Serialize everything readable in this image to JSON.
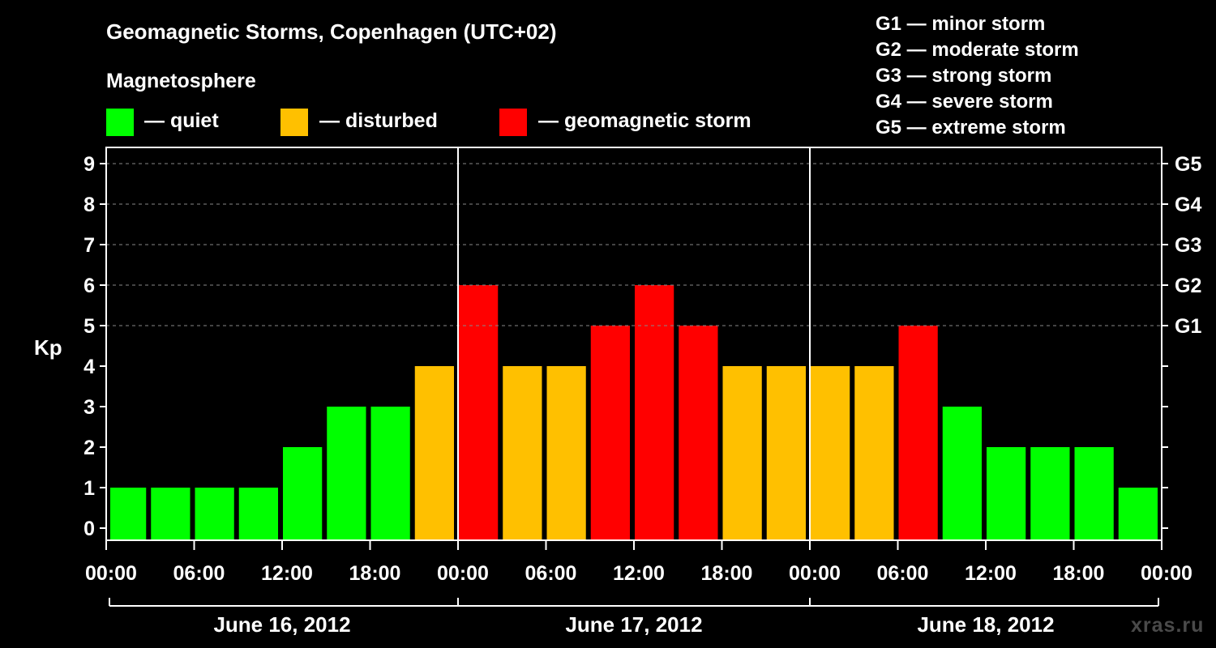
{
  "header": {
    "title": "Geomagnetic Storms, Copenhagen (UTC+02)",
    "subtitle": "Magnetosphere"
  },
  "legend": [
    {
      "label": "— quiet",
      "color": "#00ff00"
    },
    {
      "label": "— disturbed",
      "color": "#ffc000"
    },
    {
      "label": "— geomagnetic storm",
      "color": "#ff0000"
    }
  ],
  "storm_scale": [
    "G1 — minor storm",
    "G2 — moderate storm",
    "G3 — strong storm",
    "G4 — severe storm",
    "G5 — extreme storm"
  ],
  "watermark": "xras.ru",
  "colors": {
    "quiet": "#00ff00",
    "disturbed": "#ffc000",
    "storm": "#ff0000",
    "background": "#000000",
    "grid": "#888888"
  },
  "chart_data": {
    "type": "bar",
    "ylabel": "Kp",
    "ylim": [
      0,
      9
    ],
    "yticks": [
      "0",
      "1",
      "2",
      "3",
      "4",
      "5",
      "6",
      "7",
      "8",
      "9"
    ],
    "right_axis_labels": [
      {
        "kp": 5,
        "label": "G1"
      },
      {
        "kp": 6,
        "label": "G2"
      },
      {
        "kp": 7,
        "label": "G3"
      },
      {
        "kp": 8,
        "label": "G4"
      },
      {
        "kp": 9,
        "label": "G5"
      }
    ],
    "grid": true,
    "xticks": [
      "00:00",
      "06:00",
      "12:00",
      "18:00",
      "00:00",
      "06:00",
      "12:00",
      "18:00",
      "00:00",
      "06:00",
      "12:00",
      "18:00",
      "00:00"
    ],
    "day_labels": [
      "June 16, 2012",
      "June 17, 2012",
      "June 18, 2012"
    ],
    "bars": [
      {
        "start": "2012-06-16 00:00",
        "kp": 1,
        "level": "quiet"
      },
      {
        "start": "2012-06-16 03:00",
        "kp": 1,
        "level": "quiet"
      },
      {
        "start": "2012-06-16 06:00",
        "kp": 1,
        "level": "quiet"
      },
      {
        "start": "2012-06-16 09:00",
        "kp": 1,
        "level": "quiet"
      },
      {
        "start": "2012-06-16 12:00",
        "kp": 2,
        "level": "quiet"
      },
      {
        "start": "2012-06-16 15:00",
        "kp": 3,
        "level": "quiet"
      },
      {
        "start": "2012-06-16 18:00",
        "kp": 3,
        "level": "quiet"
      },
      {
        "start": "2012-06-16 21:00",
        "kp": 4,
        "level": "disturbed"
      },
      {
        "start": "2012-06-17 00:00",
        "kp": 6,
        "level": "storm"
      },
      {
        "start": "2012-06-17 03:00",
        "kp": 4,
        "level": "disturbed"
      },
      {
        "start": "2012-06-17 06:00",
        "kp": 4,
        "level": "disturbed"
      },
      {
        "start": "2012-06-17 09:00",
        "kp": 5,
        "level": "storm"
      },
      {
        "start": "2012-06-17 12:00",
        "kp": 6,
        "level": "storm"
      },
      {
        "start": "2012-06-17 15:00",
        "kp": 5,
        "level": "storm"
      },
      {
        "start": "2012-06-17 18:00",
        "kp": 4,
        "level": "disturbed"
      },
      {
        "start": "2012-06-17 21:00",
        "kp": 4,
        "level": "disturbed"
      },
      {
        "start": "2012-06-18 00:00",
        "kp": 4,
        "level": "disturbed"
      },
      {
        "start": "2012-06-18 03:00",
        "kp": 4,
        "level": "disturbed"
      },
      {
        "start": "2012-06-18 06:00",
        "kp": 5,
        "level": "storm"
      },
      {
        "start": "2012-06-18 09:00",
        "kp": 3,
        "level": "quiet"
      },
      {
        "start": "2012-06-18 12:00",
        "kp": 2,
        "level": "quiet"
      },
      {
        "start": "2012-06-18 15:00",
        "kp": 2,
        "level": "quiet"
      },
      {
        "start": "2012-06-18 18:00",
        "kp": 2,
        "level": "quiet"
      },
      {
        "start": "2012-06-18 21:00",
        "kp": 1,
        "level": "quiet"
      }
    ]
  }
}
